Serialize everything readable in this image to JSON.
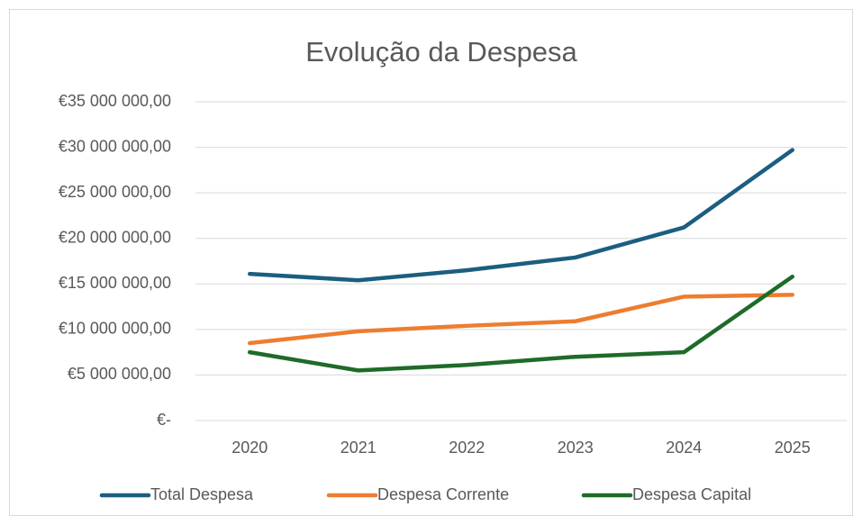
{
  "chart_data": {
    "type": "line",
    "title": "Evolução da Despesa",
    "categories": [
      "2020",
      "2021",
      "2022",
      "2023",
      "2024",
      "2025"
    ],
    "series": [
      {
        "name": "Total Despesa",
        "color": "#1b5e80",
        "values": [
          16100000,
          15400000,
          16500000,
          17900000,
          21200000,
          29700000
        ]
      },
      {
        "name": "Despesa Corrente",
        "color": "#ed7d31",
        "values": [
          8500000,
          9800000,
          10400000,
          10900000,
          13600000,
          13800000
        ]
      },
      {
        "name": "Despesa Capital",
        "color": "#1e6b2a",
        "values": [
          7500000,
          5500000,
          6100000,
          7000000,
          7500000,
          15800000
        ]
      }
    ],
    "ylim": [
      0,
      35000000
    ],
    "yticks": [
      {
        "value": 0,
        "label": "€-"
      },
      {
        "value": 5000000,
        "label": "€5 000 000,00"
      },
      {
        "value": 10000000,
        "label": "€10 000 000,00"
      },
      {
        "value": 15000000,
        "label": "€15 000 000,00"
      },
      {
        "value": 20000000,
        "label": "€20 000 000,00"
      },
      {
        "value": 25000000,
        "label": "€25 000 000,00"
      },
      {
        "value": 30000000,
        "label": "€30 000 000,00"
      },
      {
        "value": 35000000,
        "label": "€35 000 000,00"
      }
    ],
    "grid": true,
    "legend": "bottom"
  }
}
